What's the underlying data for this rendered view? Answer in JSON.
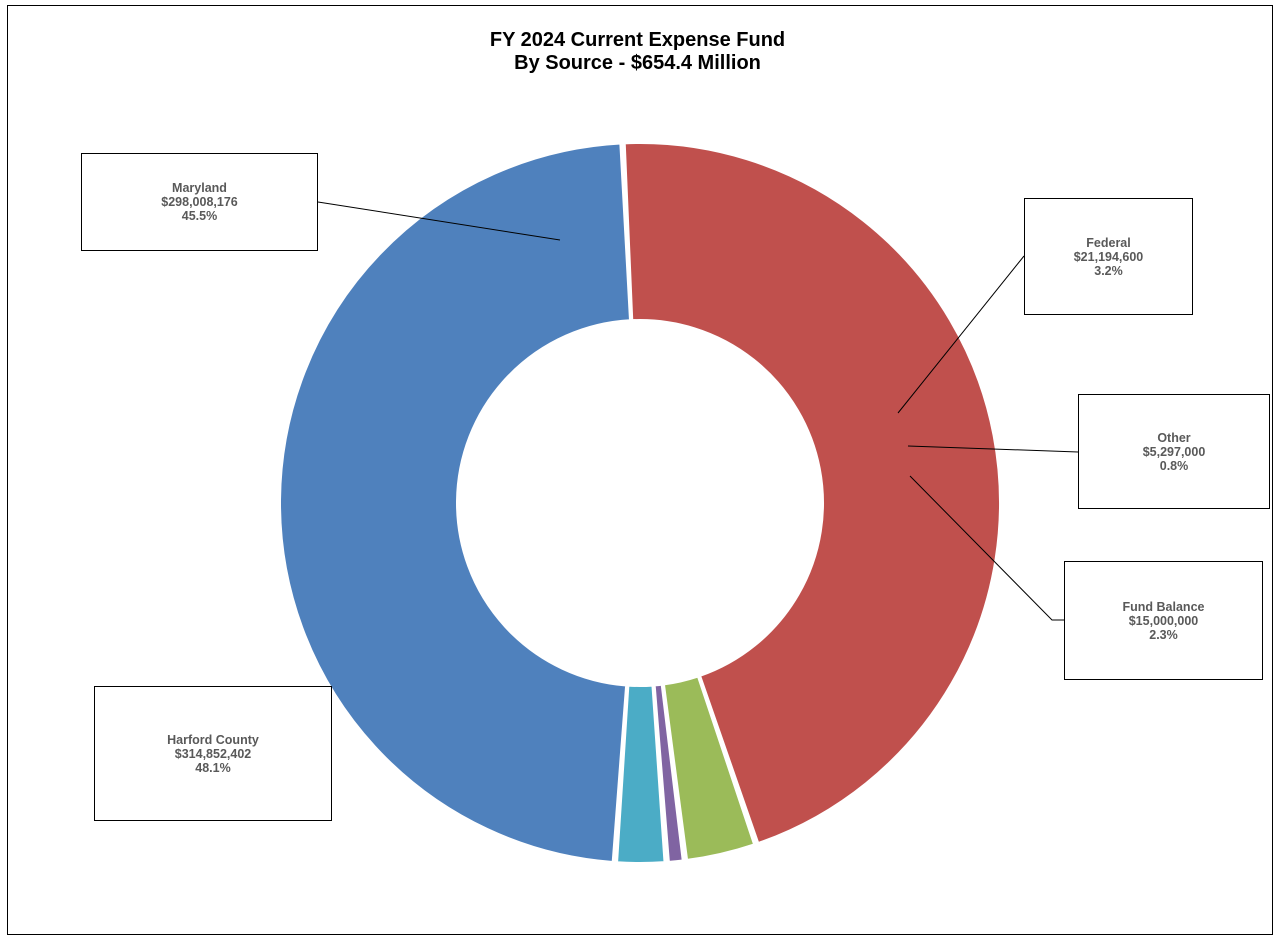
{
  "chart_data": {
    "type": "pie",
    "style": "donut",
    "title": "FY 2024 Current Expense Fund",
    "subtitle": "By Source - $654.4 Million",
    "slices": [
      {
        "label": "Harford County",
        "value": 314852402,
        "value_text": "$314,852,402",
        "percent_text": "48.1%",
        "color": "#4F81BD"
      },
      {
        "label": "Maryland",
        "value": 298008176,
        "value_text": "$298,008,176",
        "percent_text": "45.5%",
        "color": "#C0504D"
      },
      {
        "label": "Federal",
        "value": 21194600,
        "value_text": "$21,194,600",
        "percent_text": "3.2%",
        "color": "#9BBB59"
      },
      {
        "label": "Other",
        "value": 5297000,
        "value_text": "$5,297,000",
        "percent_text": "0.8%",
        "color": "#8064A2"
      },
      {
        "label": "Fund Balance",
        "value": 15000000,
        "value_text": "$15,000,000",
        "percent_text": "2.3%",
        "color": "#4BACC6"
      }
    ],
    "legend": "none"
  }
}
